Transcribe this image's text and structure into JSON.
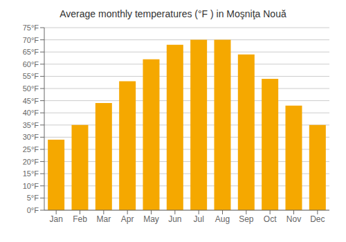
{
  "chart_data": {
    "type": "bar",
    "title": "Average monthly temperatures (°F ) in Moşniţa Nouă",
    "categories": [
      "Jan",
      "Feb",
      "Mar",
      "Apr",
      "May",
      "Jun",
      "Jul",
      "Aug",
      "Sep",
      "Oct",
      "Nov",
      "Dec"
    ],
    "values": [
      29,
      35,
      44,
      53,
      62,
      68,
      70,
      70,
      64,
      54,
      43,
      35
    ],
    "color": "#F5A800",
    "ylim": [
      0,
      75
    ],
    "yticks": [
      {
        "value": 0,
        "label": "0°F"
      },
      {
        "value": 5,
        "label": "5°F"
      },
      {
        "value": 10,
        "label": "10°F"
      },
      {
        "value": 15,
        "label": "15°F"
      },
      {
        "value": 20,
        "label": "20°F"
      },
      {
        "value": 25,
        "label": "25°F"
      },
      {
        "value": 30,
        "label": "30°F"
      },
      {
        "value": 35,
        "label": "35°F"
      },
      {
        "value": 40,
        "label": "40°F"
      },
      {
        "value": 45,
        "label": "45°F"
      },
      {
        "value": 50,
        "label": "50°F"
      },
      {
        "value": 55,
        "label": "55°F"
      },
      {
        "value": 60,
        "label": "60°F"
      },
      {
        "value": 65,
        "label": "65°F"
      },
      {
        "value": 70,
        "label": "70°F"
      },
      {
        "value": 75,
        "label": "75°F"
      }
    ],
    "grid": true
  }
}
